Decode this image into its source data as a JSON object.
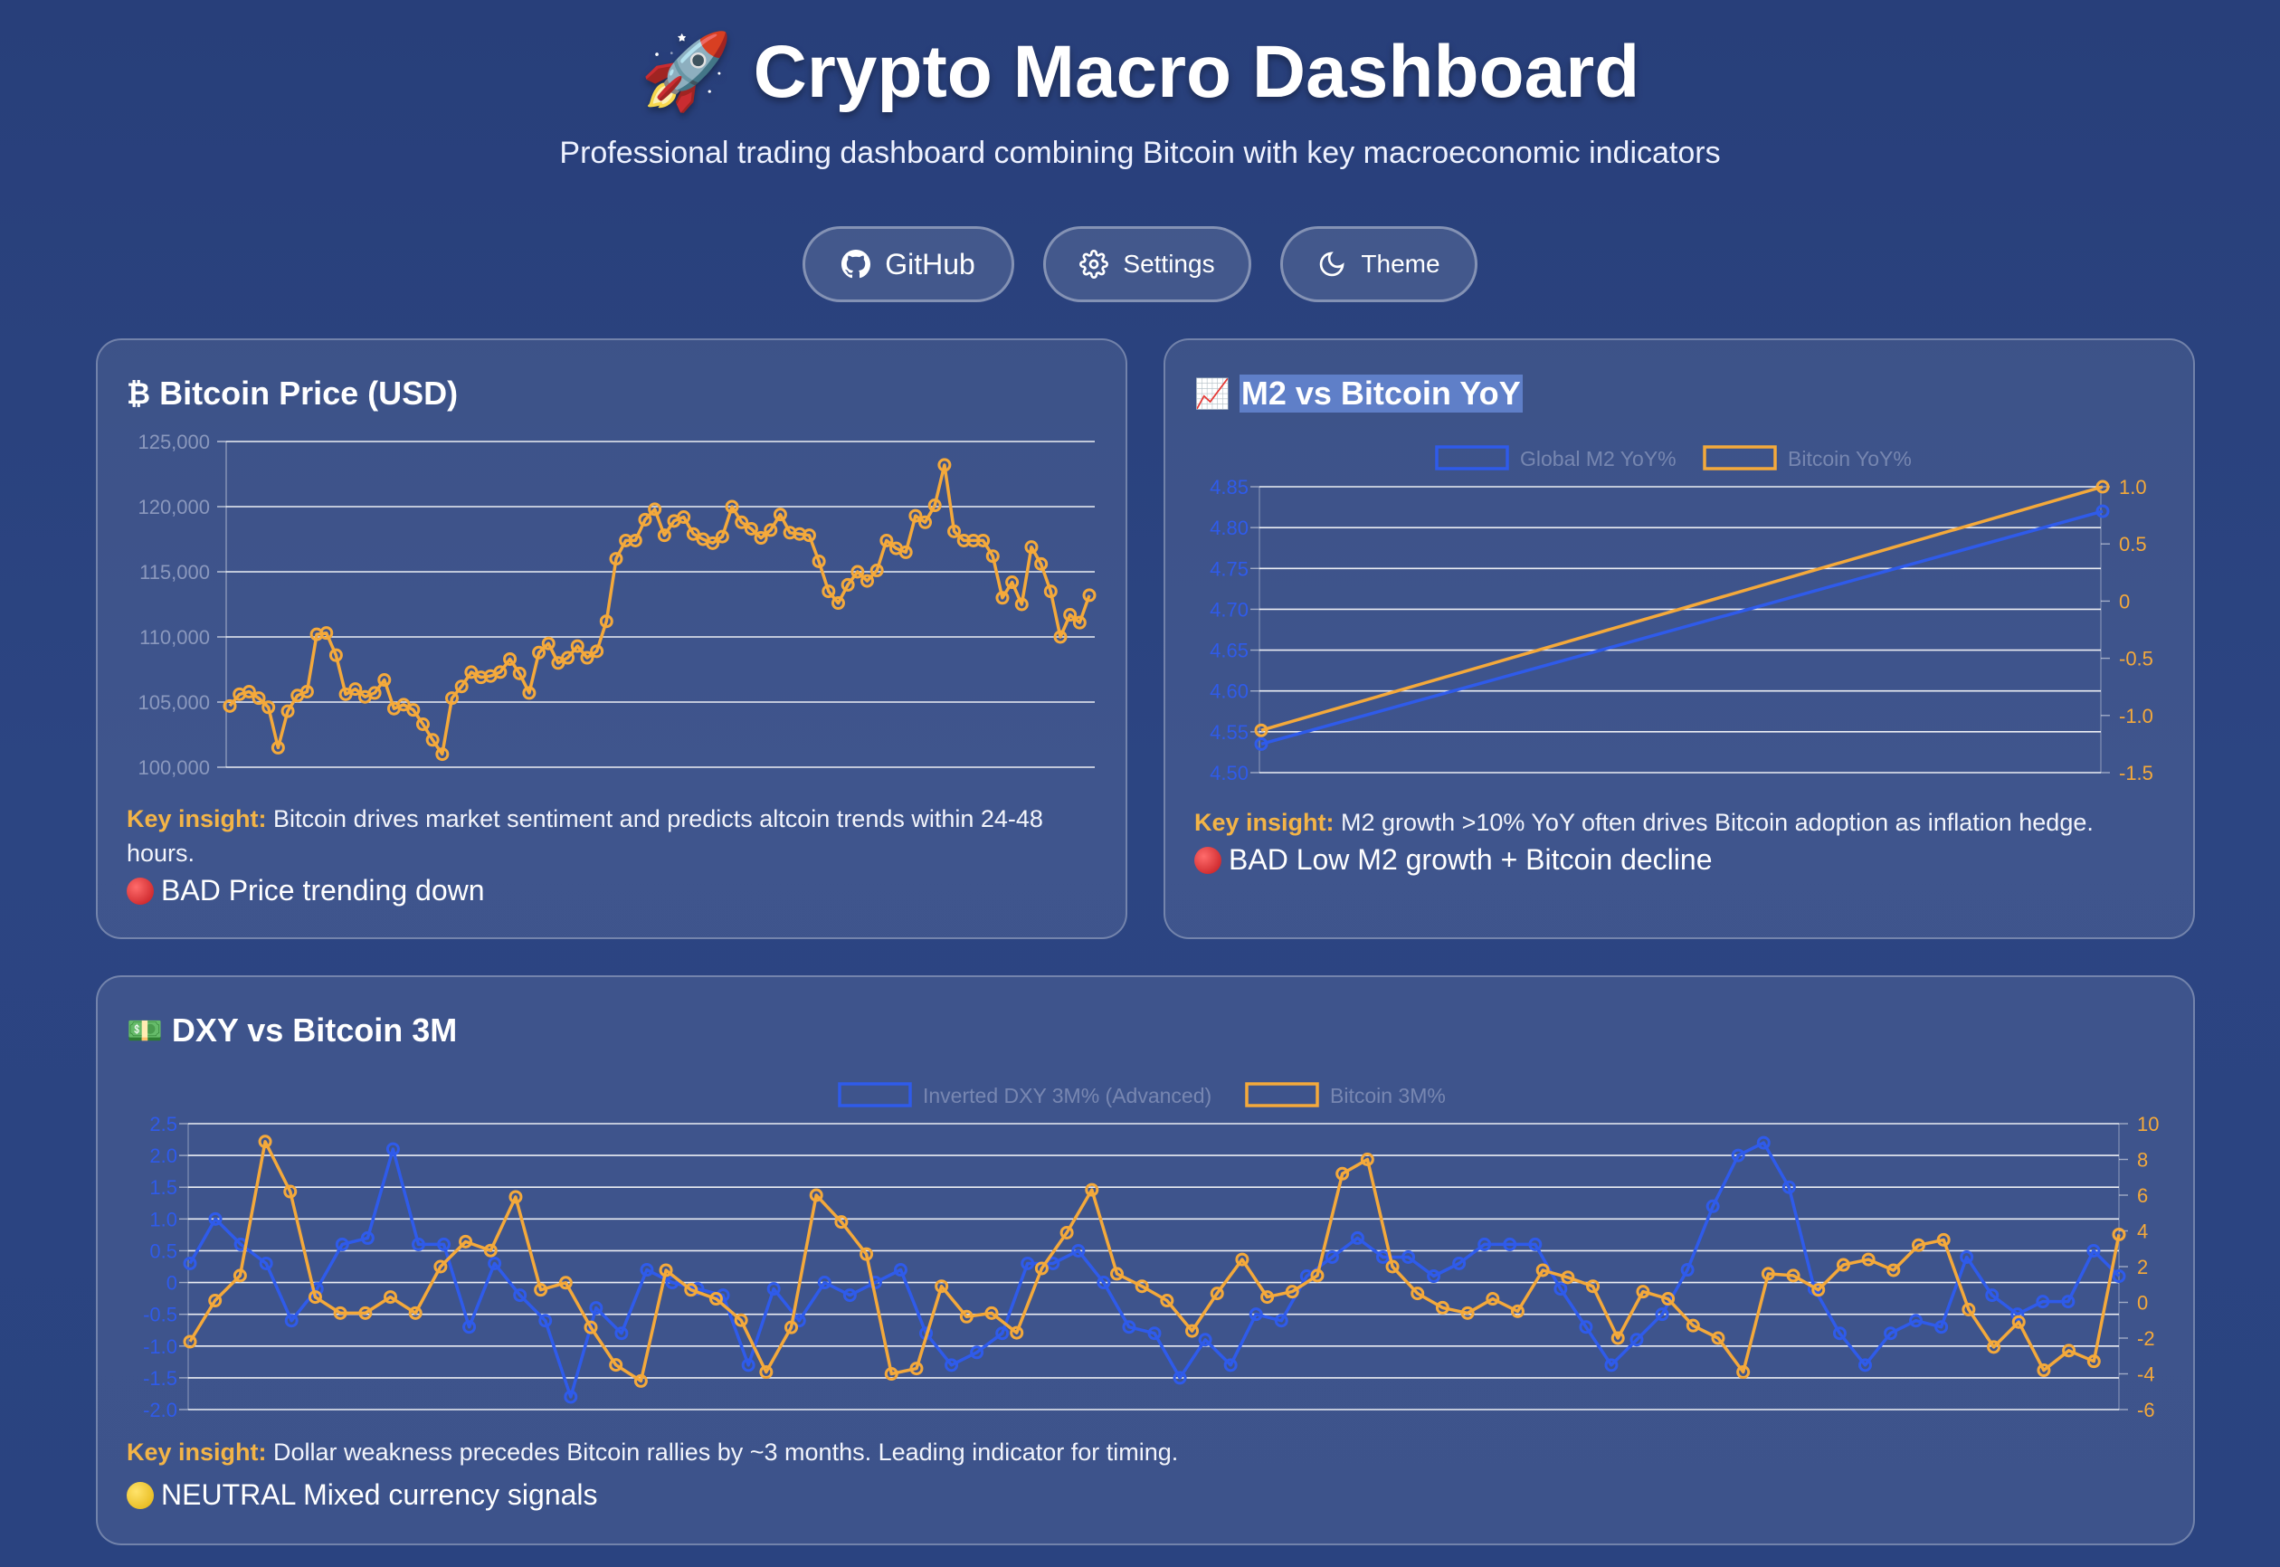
{
  "header": {
    "icon": "rocket-icon",
    "title": "🚀 Crypto Macro Dashboard",
    "subtitle": "Professional trading dashboard combining Bitcoin with key macroeconomic indicators"
  },
  "buttons": {
    "github": {
      "label": "GitHub",
      "icon": "github-icon"
    },
    "settings": {
      "label": "Settings",
      "icon": "gear-icon"
    },
    "theme": {
      "label": "Theme",
      "icon": "moon-icon"
    }
  },
  "colors": {
    "btc": "#f4a93b",
    "blue": "#2f5bea",
    "grid": "#ffffff",
    "insight": "#f3b447"
  },
  "cards": {
    "btc": {
      "icon": "₿",
      "title": "Bitcoin Price (USD)",
      "insight_label": "Key insight:",
      "insight_text": "Bitcoin drives market sentiment and predicts altcoin trends within 24-48 hours.",
      "status_icon": "red-circle-icon",
      "status_text": "BAD Price trending down"
    },
    "m2": {
      "icon": "📈",
      "title": "M2 vs Bitcoin YoY",
      "insight_label": "Key insight:",
      "insight_text": "M2 growth >10% YoY often drives Bitcoin adoption as inflation hedge.",
      "status_icon": "red-circle-icon",
      "status_text": "BAD Low M2 growth + Bitcoin decline"
    },
    "dxy": {
      "icon": "💵",
      "title": "DXY vs Bitcoin 3M",
      "insight_label": "Key insight:",
      "insight_text": "Dollar weakness precedes Bitcoin rallies by ~3 months. Leading indicator for timing.",
      "status_icon": "yellow-circle-icon",
      "status_text": "NEUTRAL Mixed currency signals"
    }
  },
  "chart_data": [
    {
      "id": "btc",
      "type": "line",
      "ylim": [
        100000,
        125000
      ],
      "yticks": [
        100000,
        105000,
        110000,
        115000,
        120000,
        125000
      ],
      "ytick_labels": [
        "100,000",
        "105,000",
        "110,000",
        "115,000",
        "120,000",
        "125,000"
      ],
      "grid": true,
      "series": [
        {
          "color": "#f4a93b",
          "values": [
            104700,
            105600,
            105800,
            105300,
            104600,
            101500,
            104300,
            105500,
            105800,
            110200,
            110300,
            108600,
            105600,
            106000,
            105400,
            105700,
            106700,
            104500,
            104800,
            104400,
            103300,
            102100,
            101000,
            105300,
            106200,
            107300,
            106900,
            107000,
            107300,
            108300,
            107200,
            105700,
            108800,
            109500,
            108000,
            108400,
            109300,
            108400,
            108900,
            111200,
            116000,
            117400,
            117400,
            119000,
            119800,
            117800,
            118900,
            119200,
            117900,
            117500,
            117200,
            117700,
            120000,
            118800,
            118300,
            117600,
            118200,
            119400,
            118000,
            117900,
            117800,
            115800,
            113500,
            112600,
            114000,
            115000,
            114300,
            115100,
            117400,
            116800,
            116500,
            119300,
            118800,
            120100,
            123200,
            118100,
            117400,
            117400,
            117400,
            116200,
            113000,
            114200,
            112500,
            116900,
            115600,
            113500,
            110000,
            111700,
            111100,
            113200
          ]
        }
      ]
    },
    {
      "id": "m2",
      "type": "line",
      "legend": [
        "Global M2 YoY%",
        "Bitcoin YoY%"
      ],
      "legend_position": "top",
      "y_left": {
        "range": [
          4.5,
          4.85
        ],
        "ticks": [
          "4.50",
          "4.55",
          "4.60",
          "4.65",
          "4.70",
          "4.75",
          "4.80",
          "4.85"
        ]
      },
      "y_right": {
        "range": [
          -1.5,
          1.0
        ],
        "ticks": [
          "-1.5",
          "-1.0",
          "-0.5",
          "0",
          "0.5",
          "1.0"
        ]
      },
      "grid": true,
      "series": [
        {
          "name": "Global M2 YoY%",
          "axis": "left",
          "color": "#2f5bea",
          "values": [
            4.535,
            4.82
          ]
        },
        {
          "name": "Bitcoin YoY%",
          "axis": "right",
          "color": "#f4a93b",
          "values": [
            -1.13,
            1.0
          ]
        }
      ]
    },
    {
      "id": "dxy",
      "type": "line",
      "legend": [
        "Inverted DXY 3M% (Advanced)",
        "Bitcoin 3M%"
      ],
      "legend_position": "top",
      "y_left": {
        "range": [
          -2.0,
          2.5
        ],
        "ticks": [
          "-2.0",
          "-1.5",
          "-1.0",
          "-0.5",
          "0",
          "0.5",
          "1.0",
          "1.5",
          "2.0",
          "2.5"
        ]
      },
      "y_right": {
        "range": [
          -6,
          10
        ],
        "ticks": [
          "-6",
          "-4",
          "-2",
          "0",
          "2",
          "4",
          "6",
          "8",
          "10"
        ]
      },
      "grid": true,
      "series": [
        {
          "name": "Inverted DXY 3M%",
          "axis": "left",
          "color": "#2f5bea",
          "values": [
            0.3,
            1.0,
            0.6,
            0.3,
            -0.6,
            -0.1,
            0.6,
            0.7,
            2.1,
            0.6,
            0.6,
            -0.7,
            0.3,
            -0.2,
            -0.6,
            -1.8,
            -0.4,
            -0.8,
            0.2,
            0.0,
            -0.1,
            -0.2,
            -1.3,
            -0.1,
            -0.6,
            0.0,
            -0.2,
            0.0,
            0.2,
            -0.8,
            -1.3,
            -1.1,
            -0.8,
            0.3,
            0.3,
            0.5,
            0.0,
            -0.7,
            -0.8,
            -1.5,
            -0.9,
            -1.3,
            -0.5,
            -0.6,
            0.1,
            0.4,
            0.7,
            0.4,
            0.4,
            0.1,
            0.3,
            0.6,
            0.6,
            0.6,
            -0.1,
            -0.7,
            -1.3,
            -0.9,
            -0.5,
            0.2,
            1.2,
            2.0,
            2.2,
            1.5,
            -0.1,
            -0.8,
            -1.3,
            -0.8,
            -0.6,
            -0.7,
            0.4,
            -0.2,
            -0.5,
            -0.3,
            -0.3,
            0.5,
            0.1
          ]
        },
        {
          "name": "Bitcoin 3M%",
          "axis": "right",
          "color": "#f4a93b",
          "values": [
            -2.2,
            0.1,
            1.5,
            9.0,
            6.2,
            0.3,
            -0.6,
            -0.6,
            0.3,
            -0.6,
            2.0,
            3.4,
            2.9,
            5.9,
            0.7,
            1.1,
            -1.4,
            -3.5,
            -4.4,
            1.8,
            0.7,
            0.2,
            -1.0,
            -3.9,
            -1.4,
            6.0,
            4.5,
            2.7,
            -4.0,
            -3.7,
            0.9,
            -0.8,
            -0.6,
            -1.7,
            1.9,
            3.9,
            6.3,
            1.6,
            0.9,
            0.1,
            -1.6,
            0.5,
            2.4,
            0.3,
            0.6,
            1.5,
            7.2,
            8.0,
            2.0,
            0.5,
            -0.3,
            -0.6,
            0.2,
            -0.5,
            1.8,
            1.4,
            0.9,
            -2.0,
            0.6,
            0.2,
            -1.3,
            -2.0,
            -3.9,
            1.6,
            1.5,
            0.7,
            2.1,
            2.4,
            1.8,
            3.2,
            3.5,
            -0.4,
            -2.5,
            -1.1,
            -3.8,
            -2.7,
            -3.3,
            3.8
          ]
        }
      ]
    }
  ]
}
